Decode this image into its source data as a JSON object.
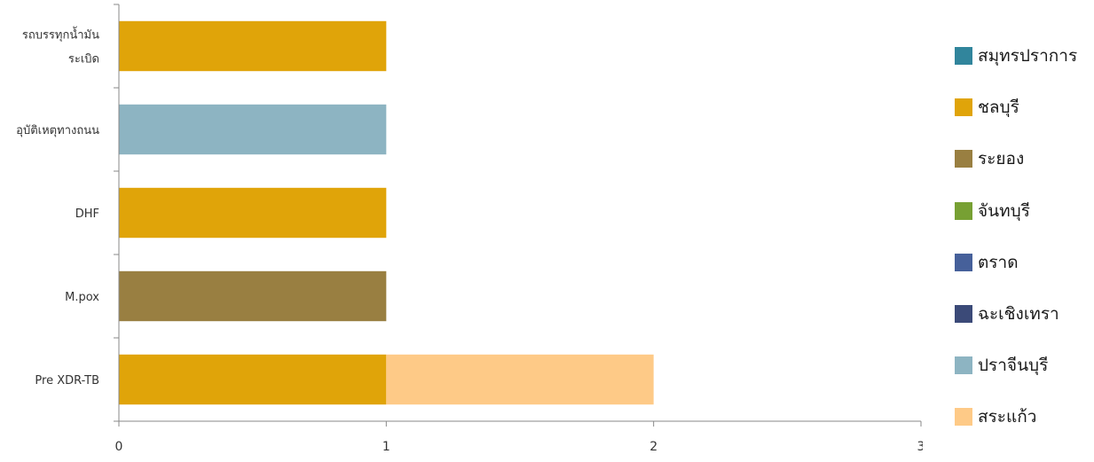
{
  "chart_data": {
    "type": "bar",
    "orientation": "horizontal",
    "stacked": true,
    "categories": [
      "รถบรรทุกน้ำมัน\nระเบิด",
      "อุบัติเหตุทางถนน",
      "DHF",
      "M.pox",
      "Pre XDR-TB"
    ],
    "series": [
      {
        "name": "สมุทรปราการ",
        "color": "#31859C",
        "values": [
          0,
          0,
          0,
          0,
          0
        ]
      },
      {
        "name": "ชลบุรี",
        "color": "#E0A409",
        "values": [
          1,
          0,
          1,
          0,
          1
        ]
      },
      {
        "name": "ระยอง",
        "color": "#997F41",
        "values": [
          0,
          0,
          0,
          1,
          0
        ]
      },
      {
        "name": "จันทบุรี",
        "color": "#77A033",
        "values": [
          0,
          0,
          0,
          0,
          0
        ]
      },
      {
        "name": "ตราด",
        "color": "#46609A",
        "values": [
          0,
          0,
          0,
          0,
          0
        ]
      },
      {
        "name": "ฉะเชิงเทรา",
        "color": "#3B4A78",
        "values": [
          0,
          0,
          0,
          0,
          0
        ]
      },
      {
        "name": "ปราจีนบุรี",
        "color": "#8DB4C2",
        "values": [
          0,
          1,
          0,
          0,
          0
        ]
      },
      {
        "name": "สระแก้ว",
        "color": "#FECA87",
        "values": [
          0,
          0,
          0,
          0,
          1
        ]
      }
    ],
    "xlim": [
      0,
      3
    ],
    "xticks": [
      "0",
      "1",
      "2",
      "3"
    ],
    "grid": false,
    "legend_position": "right",
    "title": "",
    "xlabel": "",
    "ylabel": ""
  }
}
